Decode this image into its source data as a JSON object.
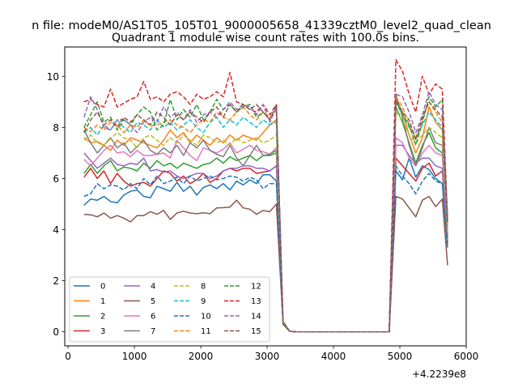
{
  "suptitle": "n file: modeM0/AS1T05_105T01_9000005658_41339cztM0_level2_quad_clean",
  "chart_data": {
    "type": "line",
    "title": "Quadrant 1 module wise count rates with 100.0s bins.",
    "xlabel": "",
    "ylabel": "",
    "xlim": [
      -50,
      6000
    ],
    "ylim": [
      -0.55,
      11.15
    ],
    "x_offset_label": "+4.2239e8",
    "x_ticks": [
      0,
      1000,
      2000,
      3000,
      4000,
      5000,
      6000
    ],
    "x_tick_labels": [
      "0",
      "1000",
      "2000",
      "3000",
      "4000",
      "5000",
      "6000"
    ],
    "y_ticks": [
      0,
      2,
      4,
      6,
      8,
      10
    ],
    "y_tick_labels": [
      "0",
      "2",
      "4",
      "6",
      "8",
      "10"
    ],
    "grid": false,
    "legend_position": "lower-left",
    "legend_columns": 4,
    "x": [
      240,
      340,
      440,
      540,
      640,
      740,
      840,
      940,
      1040,
      1140,
      1240,
      1340,
      1440,
      1540,
      1640,
      1740,
      1840,
      1940,
      2040,
      2140,
      2240,
      2340,
      2440,
      2540,
      2640,
      2740,
      2840,
      2940,
      3040,
      3140,
      3240,
      3340,
      3440,
      3540,
      3640,
      3740,
      3840,
      3940,
      4040,
      4140,
      4240,
      4340,
      4440,
      4540,
      4640,
      4740,
      4840,
      4940,
      5040,
      5140,
      5240,
      5340,
      5440,
      5540,
      5640,
      5720
    ],
    "series": [
      {
        "name": "0",
        "color": "#1f77b4",
        "dash": "solid",
        "values": [
          4.95,
          5.2,
          5.15,
          5.3,
          5.1,
          5.05,
          5.35,
          5.5,
          5.55,
          5.3,
          5.25,
          5.7,
          5.6,
          5.5,
          5.85,
          5.5,
          5.7,
          5.35,
          5.65,
          5.75,
          5.6,
          5.8,
          5.55,
          5.9,
          5.75,
          5.95,
          5.8,
          6.15,
          6.15,
          5.9,
          0.3,
          0.02,
          0,
          0,
          0,
          0,
          0,
          0,
          0,
          0,
          0,
          0,
          0,
          0,
          0,
          0,
          0,
          6.3,
          5.95,
          6.8,
          6.05,
          6.5,
          6.35,
          6.0,
          5.8,
          3.3
        ]
      },
      {
        "name": "1",
        "color": "#ff7f0e",
        "dash": "solid",
        "values": [
          7.6,
          7.4,
          7.45,
          7.3,
          7.1,
          7.5,
          7.3,
          7.6,
          7.5,
          7.4,
          7.3,
          7.2,
          7.5,
          7.9,
          7.6,
          7.8,
          7.4,
          7.7,
          7.5,
          7.3,
          7.6,
          7.4,
          7.7,
          7.5,
          7.7,
          7.6,
          7.5,
          7.8,
          8.1,
          8.3,
          0.3,
          0.02,
          0,
          0,
          0,
          0,
          0,
          0,
          0,
          0,
          0,
          0,
          0,
          0,
          0,
          0,
          0,
          9.1,
          8.6,
          7.7,
          7.0,
          7.6,
          8.8,
          8.2,
          7.9,
          3.4
        ]
      },
      {
        "name": "2",
        "color": "#2ca02c",
        "dash": "solid",
        "values": [
          6.2,
          6.55,
          6.2,
          6.5,
          6.7,
          6.3,
          6.45,
          6.4,
          6.3,
          6.6,
          6.4,
          6.7,
          6.5,
          6.6,
          6.4,
          6.6,
          6.5,
          6.4,
          6.55,
          6.6,
          6.8,
          6.6,
          6.85,
          6.7,
          6.8,
          6.9,
          6.7,
          6.9,
          6.9,
          7.0,
          0.3,
          0.02,
          0,
          0,
          0,
          0,
          0,
          0,
          0,
          0,
          0,
          0,
          0,
          0,
          0,
          0,
          0,
          8.8,
          8.2,
          7.4,
          6.6,
          7.3,
          7.8,
          7.2,
          7.0,
          3.6
        ]
      },
      {
        "name": "3",
        "color": "#d62728",
        "dash": "solid",
        "values": [
          6.05,
          6.4,
          6.0,
          6.3,
          5.8,
          6.2,
          5.9,
          5.7,
          5.8,
          5.85,
          5.7,
          6.0,
          6.3,
          6.2,
          5.9,
          6.1,
          5.8,
          5.95,
          6.2,
          5.85,
          6.0,
          6.3,
          6.4,
          6.3,
          6.4,
          6.4,
          6.2,
          6.25,
          6.3,
          6.5,
          0.3,
          0.02,
          0,
          0,
          0,
          0,
          0,
          0,
          0,
          0,
          0,
          0,
          0,
          0,
          0,
          0,
          0,
          6.8,
          6.5,
          6.2,
          5.9,
          6.4,
          6.6,
          6.1,
          6.3,
          3.5
        ]
      },
      {
        "name": "4",
        "color": "#9467bd",
        "dash": "solid",
        "values": [
          7.0,
          6.7,
          6.4,
          6.6,
          6.8,
          6.55,
          6.5,
          6.6,
          6.55,
          6.8,
          6.3,
          6.35,
          6.25,
          6.3,
          6.1,
          6.0,
          6.1,
          6.2,
          6.2,
          6.0,
          6.1,
          6.3,
          6.4,
          6.4,
          6.5,
          6.5,
          6.4,
          6.4,
          6.3,
          6.5,
          0.3,
          0.02,
          0,
          0,
          0,
          0,
          0,
          0,
          0,
          0,
          0,
          0,
          0,
          0,
          0,
          0,
          0,
          7.3,
          7.3,
          6.9,
          6.6,
          6.8,
          6.8,
          6.5,
          6.4,
          3.8
        ]
      },
      {
        "name": "5",
        "color": "#8c564b",
        "dash": "solid",
        "values": [
          4.6,
          4.58,
          4.5,
          4.65,
          4.45,
          4.55,
          4.45,
          4.3,
          4.55,
          4.55,
          4.7,
          4.6,
          4.75,
          4.4,
          4.65,
          4.72,
          4.65,
          4.62,
          4.66,
          4.62,
          4.85,
          4.86,
          4.88,
          5.15,
          4.85,
          4.8,
          4.6,
          4.75,
          4.7,
          5.0,
          0.3,
          0.02,
          0,
          0,
          0,
          0,
          0,
          0,
          0,
          0,
          0,
          0,
          0,
          0,
          0,
          0,
          0,
          5.3,
          5.2,
          4.85,
          4.5,
          5.15,
          5.3,
          4.9,
          5.2,
          2.6
        ]
      },
      {
        "name": "6",
        "color": "#e377c2",
        "dash": "solid",
        "values": [
          6.75,
          6.5,
          6.8,
          7.1,
          7.3,
          7.0,
          7.05,
          6.85,
          7.1,
          6.9,
          6.9,
          6.95,
          7.0,
          6.8,
          7.5,
          7.2,
          6.9,
          6.7,
          7.2,
          7.1,
          7.0,
          7.15,
          7.4,
          7.0,
          7.15,
          7.3,
          7.1,
          7.05,
          6.95,
          7.2,
          0.3,
          0.02,
          0,
          0,
          0,
          0,
          0,
          0,
          0,
          0,
          0,
          0,
          0,
          0,
          0,
          0,
          0,
          7.6,
          7.4,
          6.8,
          6.5,
          7.0,
          7.3,
          7.0,
          6.9,
          3.6
        ]
      },
      {
        "name": "7",
        "color": "#7f7f7f",
        "dash": "solid",
        "values": [
          7.9,
          7.4,
          7.0,
          7.3,
          7.6,
          7.2,
          7.4,
          7.0,
          7.25,
          7.5,
          7.1,
          6.95,
          7.2,
          7.0,
          7.3,
          6.9,
          7.4,
          7.2,
          7.5,
          7.1,
          6.95,
          6.85,
          7.3,
          6.8,
          6.5,
          6.9,
          7.3,
          6.9,
          6.95,
          7.1,
          0.3,
          0.02,
          0,
          0,
          0,
          0,
          0,
          0,
          0,
          0,
          0,
          0,
          0,
          0,
          0,
          0,
          0,
          9.3,
          8.4,
          7.3,
          6.5,
          7.2,
          8.0,
          7.4,
          7.3,
          3.7
        ]
      },
      {
        "name": "8",
        "color": "#bcbd22",
        "dash": "dashed",
        "values": [
          7.5,
          7.7,
          7.4,
          7.3,
          7.55,
          7.8,
          7.6,
          7.5,
          7.2,
          7.6,
          7.7,
          7.5,
          7.3,
          7.6,
          7.4,
          7.7,
          7.5,
          7.3,
          7.7,
          7.6,
          7.4,
          7.5,
          7.3,
          7.6,
          7.4,
          7.5,
          7.6,
          7.4,
          7.5,
          7.7,
          0.3,
          0.02,
          0,
          0,
          0,
          0,
          0,
          0,
          0,
          0,
          0,
          0,
          0,
          0,
          0,
          0,
          0,
          8.6,
          8.3,
          7.7,
          7.4,
          7.7,
          8.0,
          7.8,
          7.6,
          3.9
        ]
      },
      {
        "name": "9",
        "color": "#17becf",
        "dash": "dashed",
        "values": [
          7.8,
          8.0,
          7.7,
          8.1,
          7.9,
          8.3,
          8.0,
          7.8,
          8.2,
          8.1,
          7.9,
          8.3,
          8.0,
          8.2,
          7.9,
          8.1,
          8.3,
          8.0,
          7.8,
          8.2,
          8.4,
          8.0,
          8.3,
          8.1,
          8.4,
          8.2,
          8.0,
          8.3,
          8.1,
          8.2,
          0.3,
          0.02,
          0,
          0,
          0,
          0,
          0,
          0,
          0,
          0,
          0,
          0,
          0,
          0,
          0,
          0,
          0,
          9.0,
          8.5,
          8.0,
          7.6,
          8.1,
          8.6,
          8.3,
          8.0,
          4.0
        ]
      },
      {
        "name": "10",
        "color": "#1f77b4",
        "dash": "dashed",
        "values": [
          5.3,
          5.4,
          5.8,
          5.6,
          5.75,
          5.7,
          5.55,
          5.8,
          5.6,
          6.0,
          5.75,
          6.1,
          5.8,
          5.9,
          6.05,
          5.8,
          6.1,
          5.9,
          6.0,
          6.1,
          5.95,
          6.0,
          6.1,
          6.05,
          5.9,
          6.05,
          5.95,
          5.6,
          5.8,
          5.8,
          0.3,
          0.02,
          0,
          0,
          0,
          0,
          0,
          0,
          0,
          0,
          0,
          0,
          0,
          0,
          0,
          0,
          0,
          6.5,
          6.1,
          5.8,
          5.4,
          5.9,
          6.2,
          5.9,
          5.8,
          3.3
        ]
      },
      {
        "name": "11",
        "color": "#ff7f0e",
        "dash": "dashed",
        "values": [
          8.0,
          7.85,
          8.1,
          7.9,
          8.2,
          8.1,
          7.8,
          8.1,
          8.0,
          8.3,
          8.05,
          8.1,
          8.2,
          8.3,
          8.1,
          8.0,
          7.8,
          8.1,
          8.3,
          8.2,
          8.6,
          8.4,
          8.3,
          8.6,
          8.8,
          8.5,
          8.3,
          8.6,
          8.4,
          8.7,
          0.3,
          0.02,
          0,
          0,
          0,
          0,
          0,
          0,
          0,
          0,
          0,
          0,
          0,
          0,
          0,
          0,
          0,
          9.2,
          8.8,
          8.1,
          7.6,
          8.3,
          9.0,
          8.6,
          8.2,
          4.1
        ]
      },
      {
        "name": "12",
        "color": "#2ca02c",
        "dash": "dashed",
        "values": [
          8.0,
          8.5,
          9.0,
          8.2,
          8.4,
          7.9,
          8.3,
          8.1,
          8.5,
          8.8,
          8.6,
          7.9,
          8.1,
          9.1,
          8.3,
          8.7,
          8.4,
          8.9,
          8.3,
          8.6,
          9.1,
          8.7,
          8.9,
          8.6,
          8.8,
          8.9,
          8.4,
          8.6,
          8.3,
          8.7,
          0.3,
          0.02,
          0,
          0,
          0,
          0,
          0,
          0,
          0,
          0,
          0,
          0,
          0,
          0,
          0,
          0,
          0,
          9.0,
          8.5,
          8.1,
          7.3,
          8.2,
          9.2,
          8.8,
          9.1,
          4.4
        ]
      },
      {
        "name": "13",
        "color": "#d62728",
        "dash": "dashed",
        "values": [
          9.0,
          9.1,
          8.9,
          8.8,
          9.5,
          8.8,
          8.95,
          9.1,
          9.2,
          9.8,
          9.1,
          9.2,
          9.0,
          9.3,
          9.4,
          9.2,
          8.9,
          9.3,
          9.1,
          9.2,
          9.4,
          9.2,
          10.15,
          9.0,
          8.9,
          8.7,
          8.6,
          8.9,
          8.5,
          8.9,
          0.4,
          0.02,
          0,
          0,
          0,
          0,
          0,
          0,
          0,
          0,
          0,
          0,
          0,
          0,
          0,
          0,
          0,
          10.65,
          10.2,
          9.3,
          8.6,
          10.0,
          9.3,
          9.7,
          9.5,
          4.3
        ]
      },
      {
        "name": "14",
        "color": "#9467bd",
        "dash": "dashed",
        "values": [
          8.4,
          9.2,
          8.7,
          8.0,
          7.9,
          8.3,
          8.3,
          8.1,
          7.8,
          8.2,
          8.4,
          8.2,
          8.8,
          8.4,
          8.6,
          8.3,
          8.7,
          8.2,
          8.5,
          8.6,
          8.4,
          8.7,
          9.0,
          8.7,
          8.9,
          8.8,
          8.5,
          8.9,
          8.2,
          8.8,
          0.4,
          0.02,
          0,
          0,
          0,
          0,
          0,
          0,
          0,
          0,
          0,
          0,
          0,
          0,
          0,
          0,
          0,
          9.3,
          9.2,
          8.6,
          7.8,
          8.5,
          9.4,
          8.9,
          8.7,
          4.5
        ]
      },
      {
        "name": "15",
        "color": "#8c564b",
        "dash": "dashed",
        "values": [
          7.8,
          8.3,
          8.6,
          8.1,
          8.3,
          8.0,
          8.4,
          8.2,
          8.5,
          8.3,
          8.1,
          8.6,
          8.4,
          8.1,
          8.5,
          8.3,
          8.6,
          8.4,
          8.2,
          8.6,
          8.8,
          8.4,
          8.9,
          8.6,
          8.9,
          8.7,
          8.9,
          8.6,
          8.3,
          8.9,
          0.4,
          0.02,
          0,
          0,
          0,
          0,
          0,
          0,
          0,
          0,
          0,
          0,
          0,
          0,
          0,
          0,
          0,
          9.1,
          8.6,
          8.3,
          7.5,
          8.4,
          9.0,
          8.7,
          8.4,
          4.3
        ]
      }
    ]
  }
}
